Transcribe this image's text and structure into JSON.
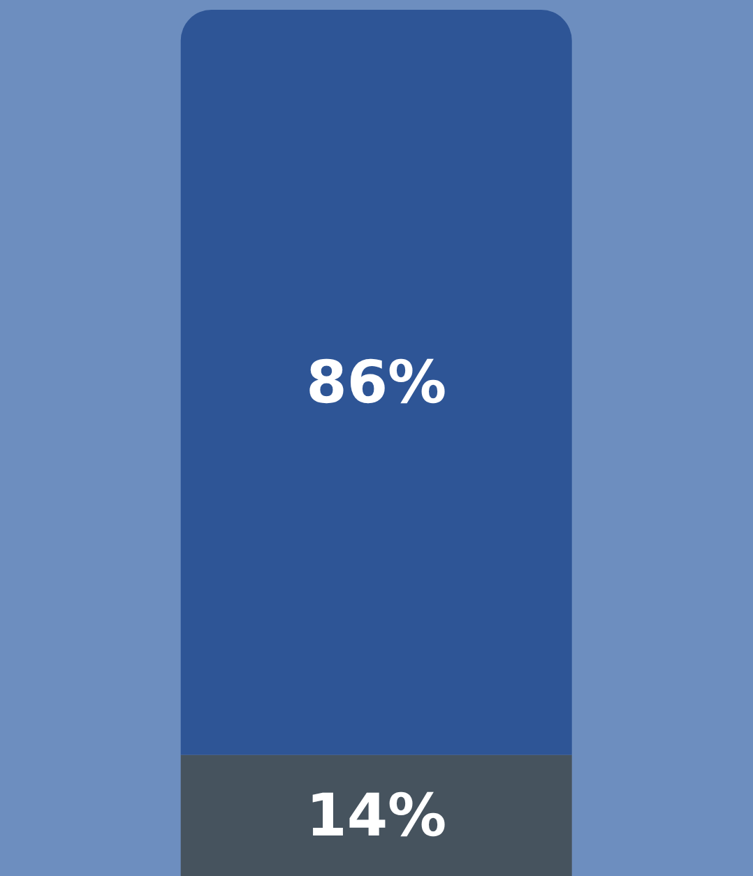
{
  "chart_data": {
    "type": "bar",
    "stacked": true,
    "categories": [
      null
    ],
    "series": [
      {
        "color": "#46535e",
        "values": [
          14
        ],
        "value_labels": [
          "14%"
        ]
      },
      {
        "color": "#2e5596",
        "values": [
          86
        ],
        "value_labels": [
          "86%"
        ]
      }
    ]
  }
}
